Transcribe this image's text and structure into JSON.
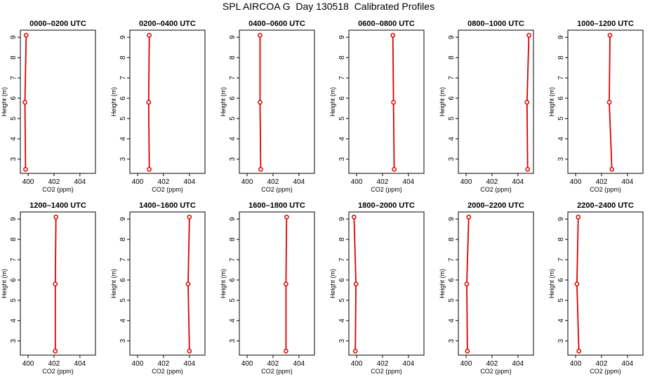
{
  "title": "SPL AIRCOA G  Day 130518  Calibrated Profiles",
  "chart_data": {
    "type": "line",
    "xlabel": "CO2 (ppm)",
    "ylabel": "Height (m)",
    "xlim": [
      399.4,
      405.2
    ],
    "ylim": [
      2.3,
      9.35
    ],
    "xticks": [
      400,
      402,
      404
    ],
    "yticks": [
      3,
      4,
      5,
      6,
      7,
      8,
      9
    ],
    "color": "#dd0000",
    "panels": [
      {
        "title": "0000–0200 UTC",
        "x": [
          399.8,
          399.75,
          399.85
        ],
        "y": [
          2.5,
          5.8,
          9.1
        ]
      },
      {
        "title": "0200–0400 UTC",
        "x": [
          400.9,
          400.85,
          400.9
        ],
        "y": [
          2.5,
          5.8,
          9.1
        ]
      },
      {
        "title": "0400–0600 UTC",
        "x": [
          401.05,
          401.0,
          401.0
        ],
        "y": [
          2.5,
          5.8,
          9.1
        ]
      },
      {
        "title": "0600–0800 UTC",
        "x": [
          402.9,
          402.85,
          402.8
        ],
        "y": [
          2.5,
          5.8,
          9.1
        ]
      },
      {
        "title": "0800–1000 UTC",
        "x": [
          404.75,
          404.7,
          404.85
        ],
        "y": [
          2.5,
          5.8,
          9.1
        ]
      },
      {
        "title": "1000–1200 UTC",
        "x": [
          402.8,
          402.6,
          402.65
        ],
        "y": [
          2.5,
          5.8,
          9.1
        ]
      },
      {
        "title": "1200–1400 UTC",
        "x": [
          402.1,
          402.1,
          402.15
        ],
        "y": [
          2.5,
          5.8,
          9.1
        ]
      },
      {
        "title": "1400–1600 UTC",
        "x": [
          404.0,
          403.9,
          404.0
        ],
        "y": [
          2.5,
          5.8,
          9.1
        ]
      },
      {
        "title": "1600–1800 UTC",
        "x": [
          403.0,
          403.0,
          403.05
        ],
        "y": [
          2.5,
          5.8,
          9.1
        ]
      },
      {
        "title": "1800–2000 UTC",
        "x": [
          399.9,
          399.95,
          399.8
        ],
        "y": [
          2.5,
          5.8,
          9.1
        ]
      },
      {
        "title": "2000–2200 UTC",
        "x": [
          400.1,
          400.05,
          400.2
        ],
        "y": [
          2.5,
          5.8,
          9.1
        ]
      },
      {
        "title": "2200–2400 UTC",
        "x": [
          400.25,
          400.1,
          400.2
        ],
        "y": [
          2.5,
          5.8,
          9.1
        ]
      }
    ]
  }
}
